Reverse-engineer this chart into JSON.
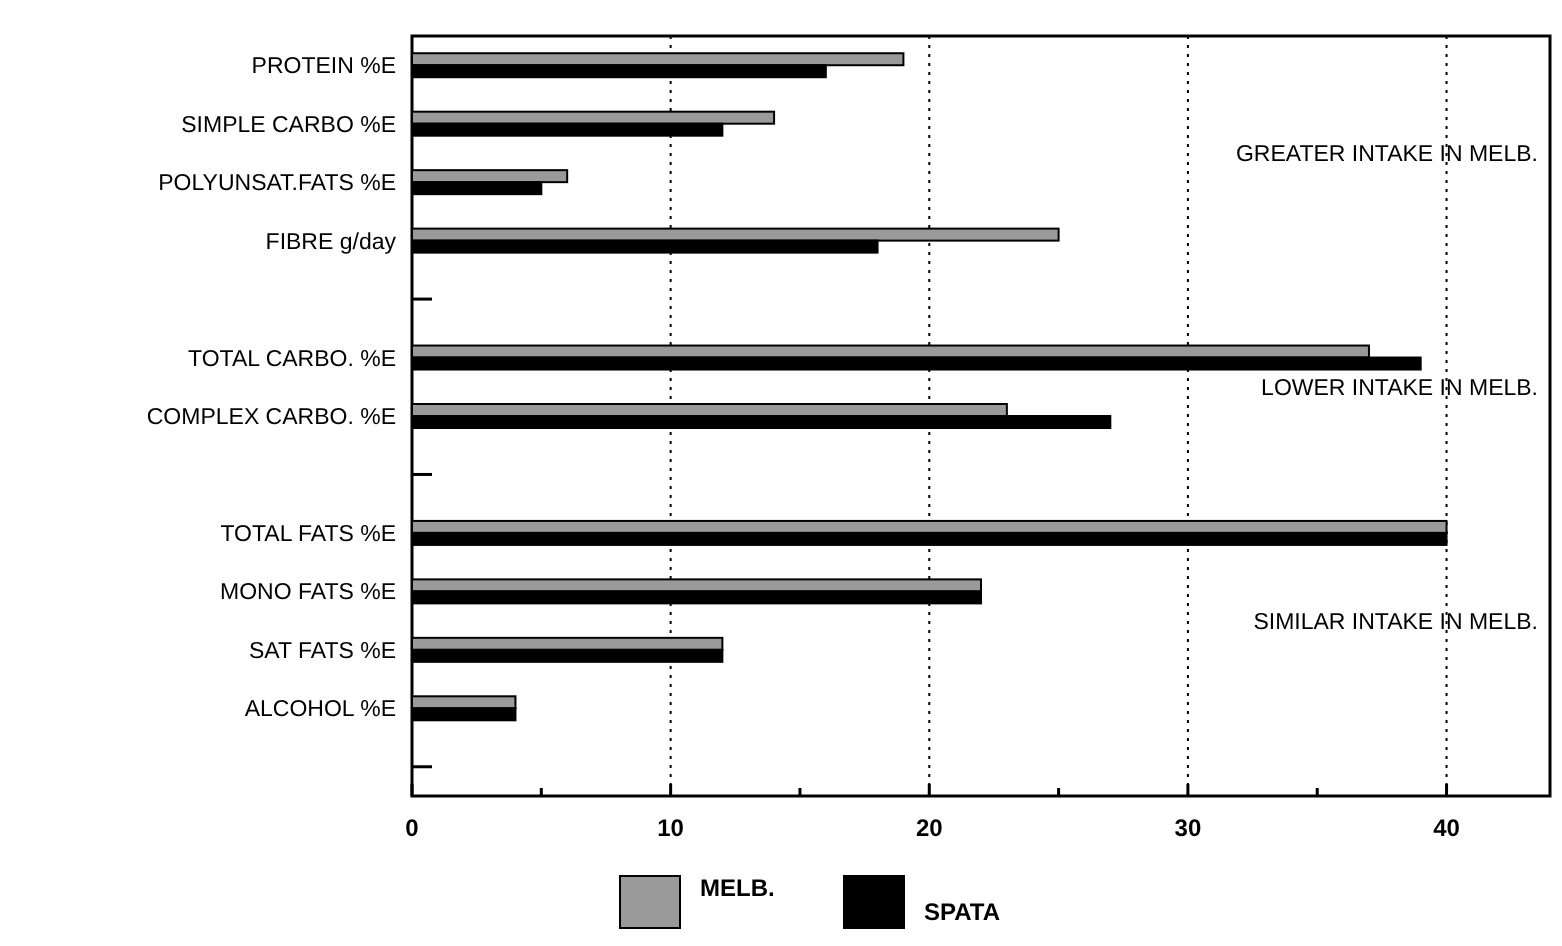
{
  "chart_data": {
    "type": "bar",
    "orientation": "horizontal",
    "categories": [
      "PROTEIN %E",
      "SIMPLE CARBO %E",
      "POLYUNSAT.FATS %E",
      "FIBRE g/day",
      null,
      "TOTAL CARBO. %E",
      "COMPLEX CARBO. %E",
      null,
      "TOTAL FATS %E",
      "MONO FATS %E",
      "SAT FATS %E",
      "ALCOHOL %E",
      null
    ],
    "series": [
      {
        "name": "MELB.",
        "color": "#9a9a9a",
        "values": [
          19,
          14,
          6,
          25,
          null,
          37,
          23,
          null,
          40,
          22,
          12,
          4,
          null
        ]
      },
      {
        "name": "SPATA",
        "color": "#000000",
        "values": [
          16,
          12,
          5,
          18,
          null,
          39,
          27,
          null,
          40,
          22,
          12,
          4,
          null
        ]
      }
    ],
    "xlim": [
      0,
      44
    ],
    "xticks": [
      0,
      {
        "value": 5,
        "label": null
      },
      10,
      {
        "value": 15,
        "label": null
      },
      20,
      {
        "value": 25,
        "label": null
      },
      30,
      {
        "value": 35,
        "label": null
      },
      40
    ],
    "grid": "x",
    "legend": "bottom",
    "annotations": [
      "GREATER INTAKE IN MELB.",
      "LOWER INTAKE IN MELB.",
      "SIMILAR INTAKE IN MELB."
    ]
  }
}
